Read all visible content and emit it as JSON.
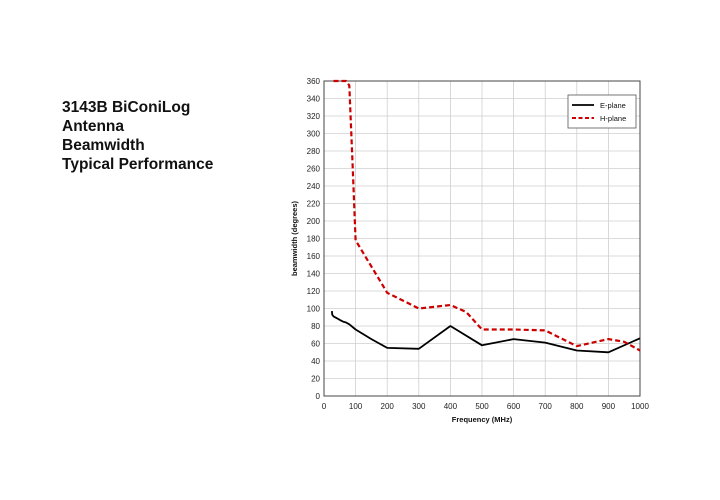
{
  "heading": {
    "lines": [
      "3143B BiConiLog",
      "Antenna",
      "Beamwidth",
      "Typical Performance"
    ]
  },
  "chart_data": {
    "type": "line",
    "title": "",
    "xlabel": "Frequency (MHz)",
    "ylabel": "beamwidth (degrees)",
    "xlim": [
      0,
      1000
    ],
    "ylim": [
      0,
      360
    ],
    "xticks": [
      0,
      100,
      200,
      300,
      400,
      500,
      600,
      700,
      800,
      900,
      1000
    ],
    "yticks": [
      0,
      20,
      40,
      60,
      80,
      100,
      120,
      140,
      160,
      180,
      200,
      220,
      240,
      260,
      280,
      300,
      320,
      340,
      360
    ],
    "grid": true,
    "legend": "top-right",
    "series": [
      {
        "name": "E-plane",
        "color": "#000000",
        "style": "solid",
        "x": [
          25,
          26,
          30,
          40,
          50,
          60,
          70,
          80,
          100,
          150,
          200,
          300,
          400,
          500,
          600,
          700,
          800,
          900,
          1000
        ],
        "y": [
          97,
          93,
          91,
          89,
          87,
          85,
          84,
          82,
          76,
          65,
          55,
          54,
          80,
          58,
          65,
          61,
          52,
          50,
          66
        ]
      },
      {
        "name": "H-plane",
        "color": "#cc0000",
        "style": "dashed",
        "x": [
          30,
          50,
          70,
          80,
          90,
          100,
          150,
          200,
          250,
          300,
          350,
          400,
          450,
          500,
          600,
          700,
          750,
          800,
          850,
          900,
          950,
          1000
        ],
        "y": [
          360,
          360,
          360,
          355,
          270,
          178,
          148,
          118,
          109,
          100,
          102,
          104,
          96,
          76,
          76,
          75,
          66,
          57,
          61,
          65,
          62,
          52
        ]
      }
    ]
  }
}
